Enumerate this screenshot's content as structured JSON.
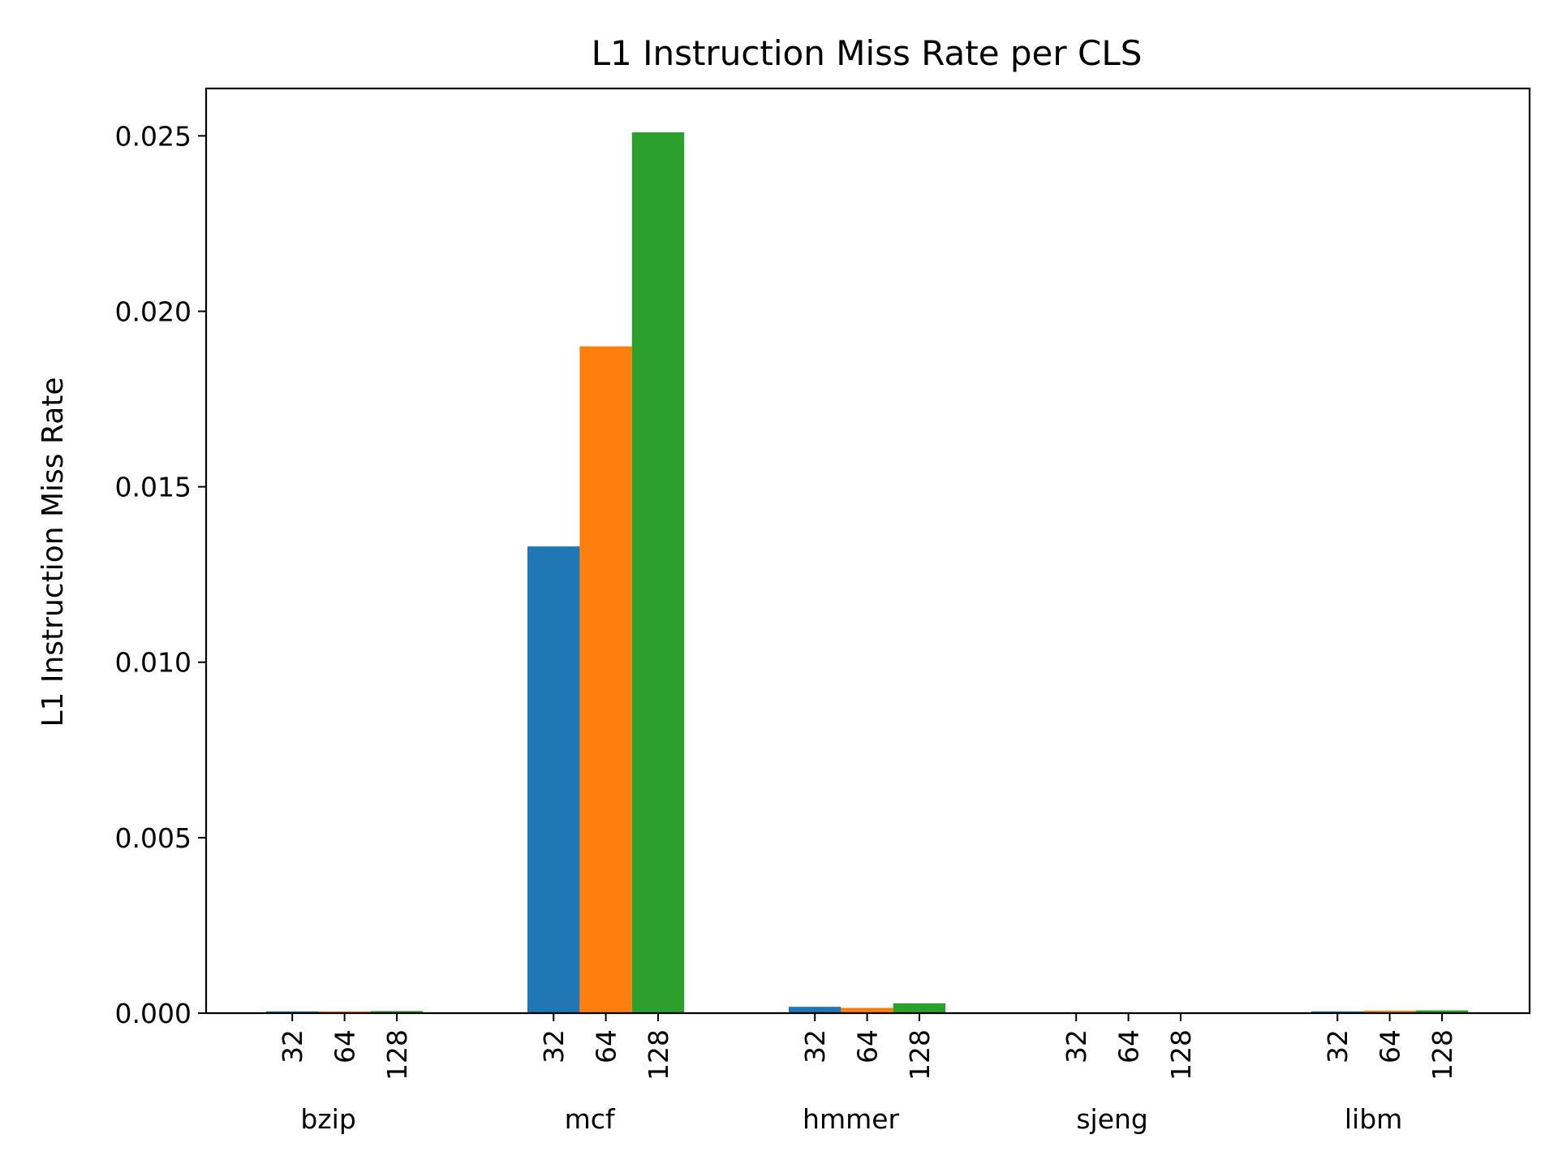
{
  "chart_data": {
    "type": "bar",
    "title": "L1 Instruction Miss Rate per CLS",
    "xlabel": "",
    "ylabel": "L1 Instruction Miss Rate",
    "categories": [
      "bzip",
      "mcf",
      "hmmer",
      "sjeng",
      "libm"
    ],
    "sub_categories": [
      "32",
      "64",
      "128"
    ],
    "series": [
      {
        "values": [
          5e-05,
          0.0133,
          0.00018,
          0.0,
          5e-05
        ]
      },
      {
        "values": [
          5e-05,
          0.019,
          0.00015,
          0.0,
          7e-05
        ]
      },
      {
        "values": [
          6e-05,
          0.0251,
          0.00028,
          0.0,
          8e-05
        ]
      }
    ],
    "colors": [
      "#1f77b4",
      "#ff7f0e",
      "#2ca02c"
    ],
    "ylim": [
      0,
      0.02635
    ],
    "yticks": [
      0.0,
      0.005,
      0.01,
      0.015,
      0.02,
      0.025
    ],
    "ytick_labels": [
      "0.000",
      "0.005",
      "0.010",
      "0.015",
      "0.020",
      "0.025"
    ],
    "grid": false,
    "legend": false
  }
}
